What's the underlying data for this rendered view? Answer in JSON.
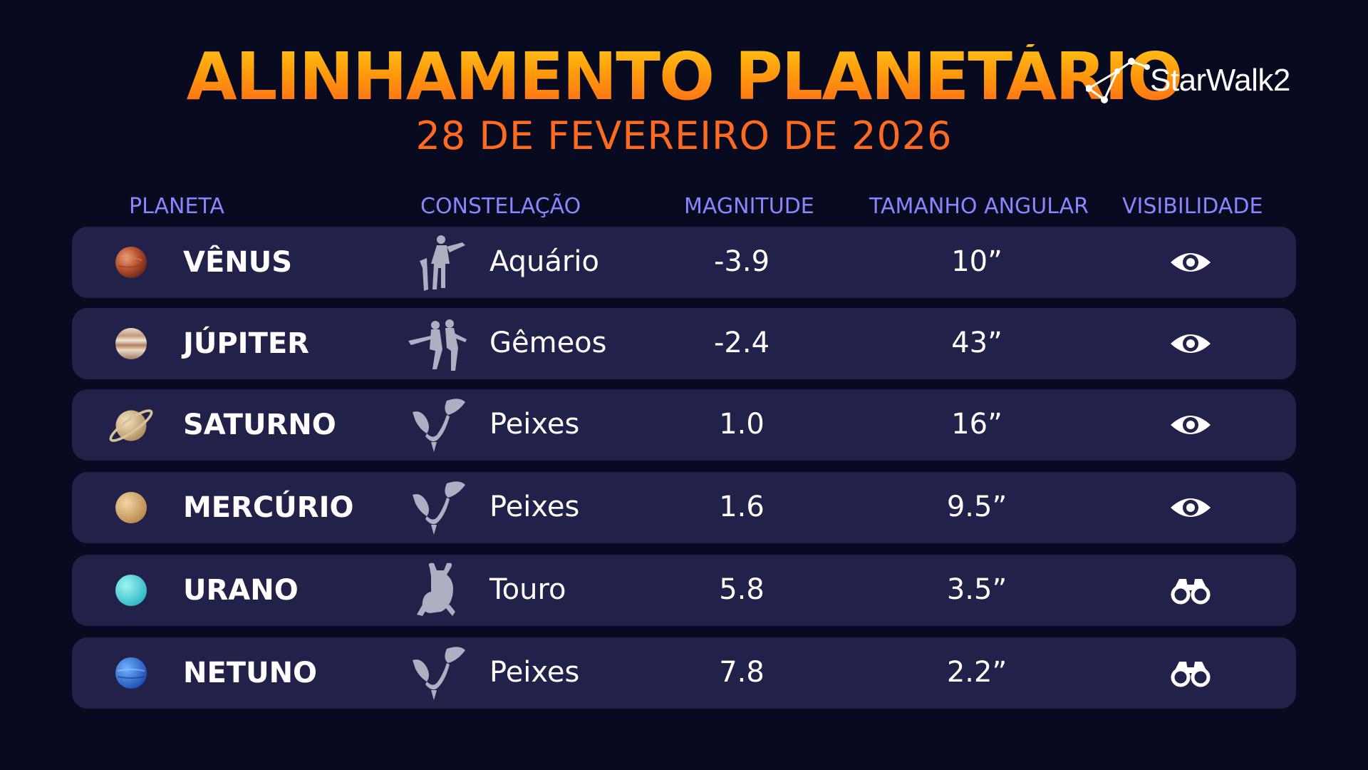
{
  "header": {
    "title": "ALINHAMENTO PLANETÁRIO",
    "subtitle": "28 DE FEVEREIRO DE 2026",
    "logo_text": "StarWalk2"
  },
  "columns": {
    "planet": "PLANETA",
    "constellation": "CONSTELAÇÃO",
    "magnitude": "MAGNITUDE",
    "angular_size": "TAMANHO ANGULAR",
    "visibility": "VISIBILIDADE"
  },
  "colors": {
    "background": "#080a1f",
    "row": "#22214a",
    "title_accent": "#ff9d0a",
    "subtitle": "#ff6a22",
    "header_text": "#8a86ff"
  },
  "rows": [
    {
      "planet": "VÊNUS",
      "planet_icon": "venus-icon",
      "constellation": "Aquário",
      "constellation_icon": "aquarius-icon",
      "magnitude": "-3.9",
      "angular_size": "10”",
      "visibility": "eye-icon"
    },
    {
      "planet": "JÚPITER",
      "planet_icon": "jupiter-icon",
      "constellation": "Gêmeos",
      "constellation_icon": "gemini-icon",
      "magnitude": "-2.4",
      "angular_size": "43”",
      "visibility": "eye-icon"
    },
    {
      "planet": "SATURNO",
      "planet_icon": "saturn-icon",
      "constellation": "Peixes",
      "constellation_icon": "pisces-icon",
      "magnitude": "1.0",
      "angular_size": "16”",
      "visibility": "eye-icon"
    },
    {
      "planet": "MERCÚRIO",
      "planet_icon": "mercury-icon",
      "constellation": "Peixes",
      "constellation_icon": "pisces-icon",
      "magnitude": "1.6",
      "angular_size": "9.5”",
      "visibility": "eye-icon"
    },
    {
      "planet": "URANO",
      "planet_icon": "uranus-icon",
      "constellation": "Touro",
      "constellation_icon": "taurus-icon",
      "magnitude": "5.8",
      "angular_size": "3.5”",
      "visibility": "binoculars-icon"
    },
    {
      "planet": "NETUNO",
      "planet_icon": "neptune-icon",
      "constellation": "Peixes",
      "constellation_icon": "pisces-icon",
      "magnitude": "7.8",
      "angular_size": "2.2”",
      "visibility": "binoculars-icon"
    }
  ]
}
